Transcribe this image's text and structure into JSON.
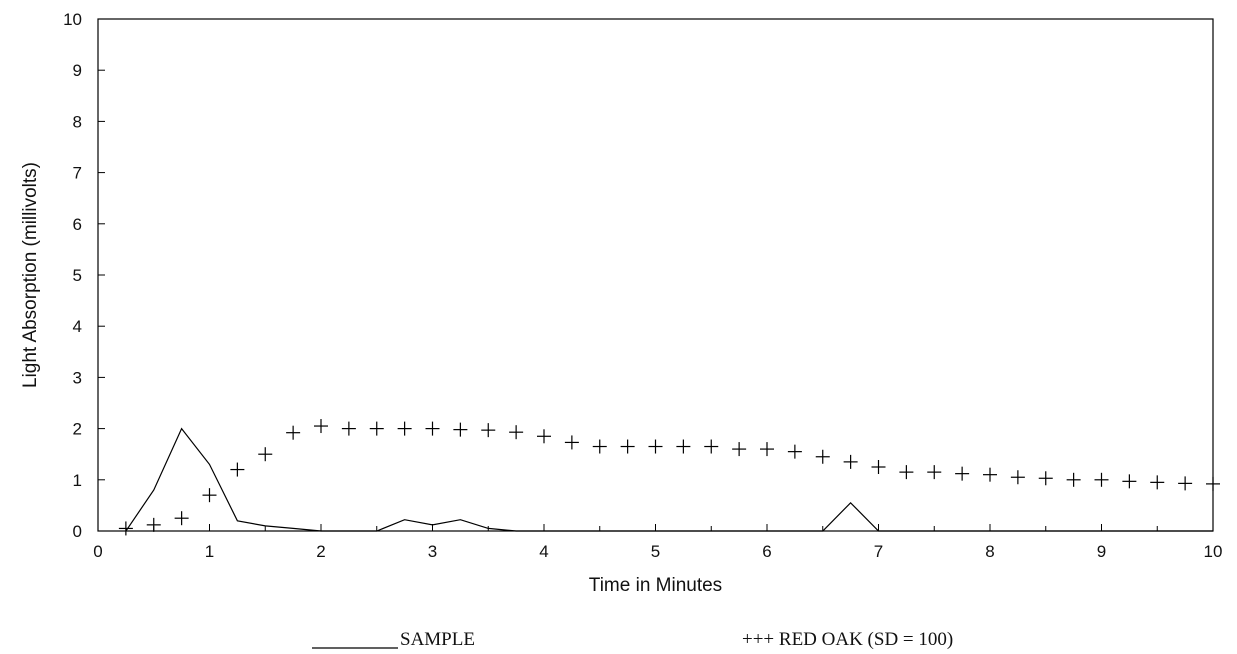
{
  "chart_data": {
    "type": "line",
    "title": "",
    "xlabel": "Time in Minutes",
    "ylabel": "Light Absorption (millivolts)",
    "xlim": [
      0,
      10
    ],
    "ylim": [
      0,
      10
    ],
    "xticks": [
      0,
      1,
      2,
      3,
      4,
      5,
      6,
      7,
      8,
      9,
      10
    ],
    "yticks": [
      0,
      1,
      2,
      3,
      4,
      5,
      6,
      7,
      8,
      9,
      10
    ],
    "grid": false,
    "series": [
      {
        "name": "SAMPLE",
        "style": "line",
        "color": "#000000",
        "x": [
          0.25,
          0.5,
          0.75,
          1.0,
          1.25,
          1.5,
          1.75,
          2.0,
          2.25,
          2.5,
          2.75,
          3.0,
          3.25,
          3.5,
          3.75,
          4.0,
          4.5,
          5.0,
          5.5,
          6.0,
          6.5,
          6.75,
          7.0,
          7.5,
          8.0,
          8.5,
          9.0,
          9.5,
          10.0
        ],
        "y": [
          0.0,
          0.8,
          2.0,
          1.3,
          0.2,
          0.1,
          0.05,
          0.0,
          0.0,
          0.0,
          0.22,
          0.12,
          0.22,
          0.05,
          0.0,
          0.0,
          0.0,
          0.0,
          0.0,
          0.0,
          0.0,
          0.55,
          0.0,
          0.0,
          0.0,
          0.0,
          0.0,
          0.0,
          0.0
        ]
      },
      {
        "name": "RED OAK (SD = 100)",
        "style": "plus-markers",
        "color": "#000000",
        "x": [
          0.25,
          0.5,
          0.75,
          1.0,
          1.25,
          1.5,
          1.75,
          2.0,
          2.25,
          2.5,
          2.75,
          3.0,
          3.25,
          3.5,
          3.75,
          4.0,
          4.25,
          4.5,
          4.75,
          5.0,
          5.25,
          5.5,
          5.75,
          6.0,
          6.25,
          6.5,
          6.75,
          7.0,
          7.25,
          7.5,
          7.75,
          8.0,
          8.25,
          8.5,
          8.75,
          9.0,
          9.25,
          9.5,
          9.75,
          10.0
        ],
        "y": [
          0.05,
          0.12,
          0.25,
          0.7,
          1.2,
          1.5,
          1.92,
          2.05,
          2.0,
          2.0,
          2.0,
          2.0,
          1.98,
          1.97,
          1.93,
          1.85,
          1.73,
          1.65,
          1.65,
          1.65,
          1.65,
          1.65,
          1.6,
          1.6,
          1.55,
          1.45,
          1.35,
          1.25,
          1.15,
          1.15,
          1.12,
          1.1,
          1.05,
          1.03,
          1.0,
          1.0,
          0.97,
          0.95,
          0.93,
          0.92
        ]
      }
    ],
    "legend": {
      "position": "bottom",
      "sample_label": "SAMPLE",
      "redoak_label": "+++ RED OAK (SD = 100)"
    }
  }
}
